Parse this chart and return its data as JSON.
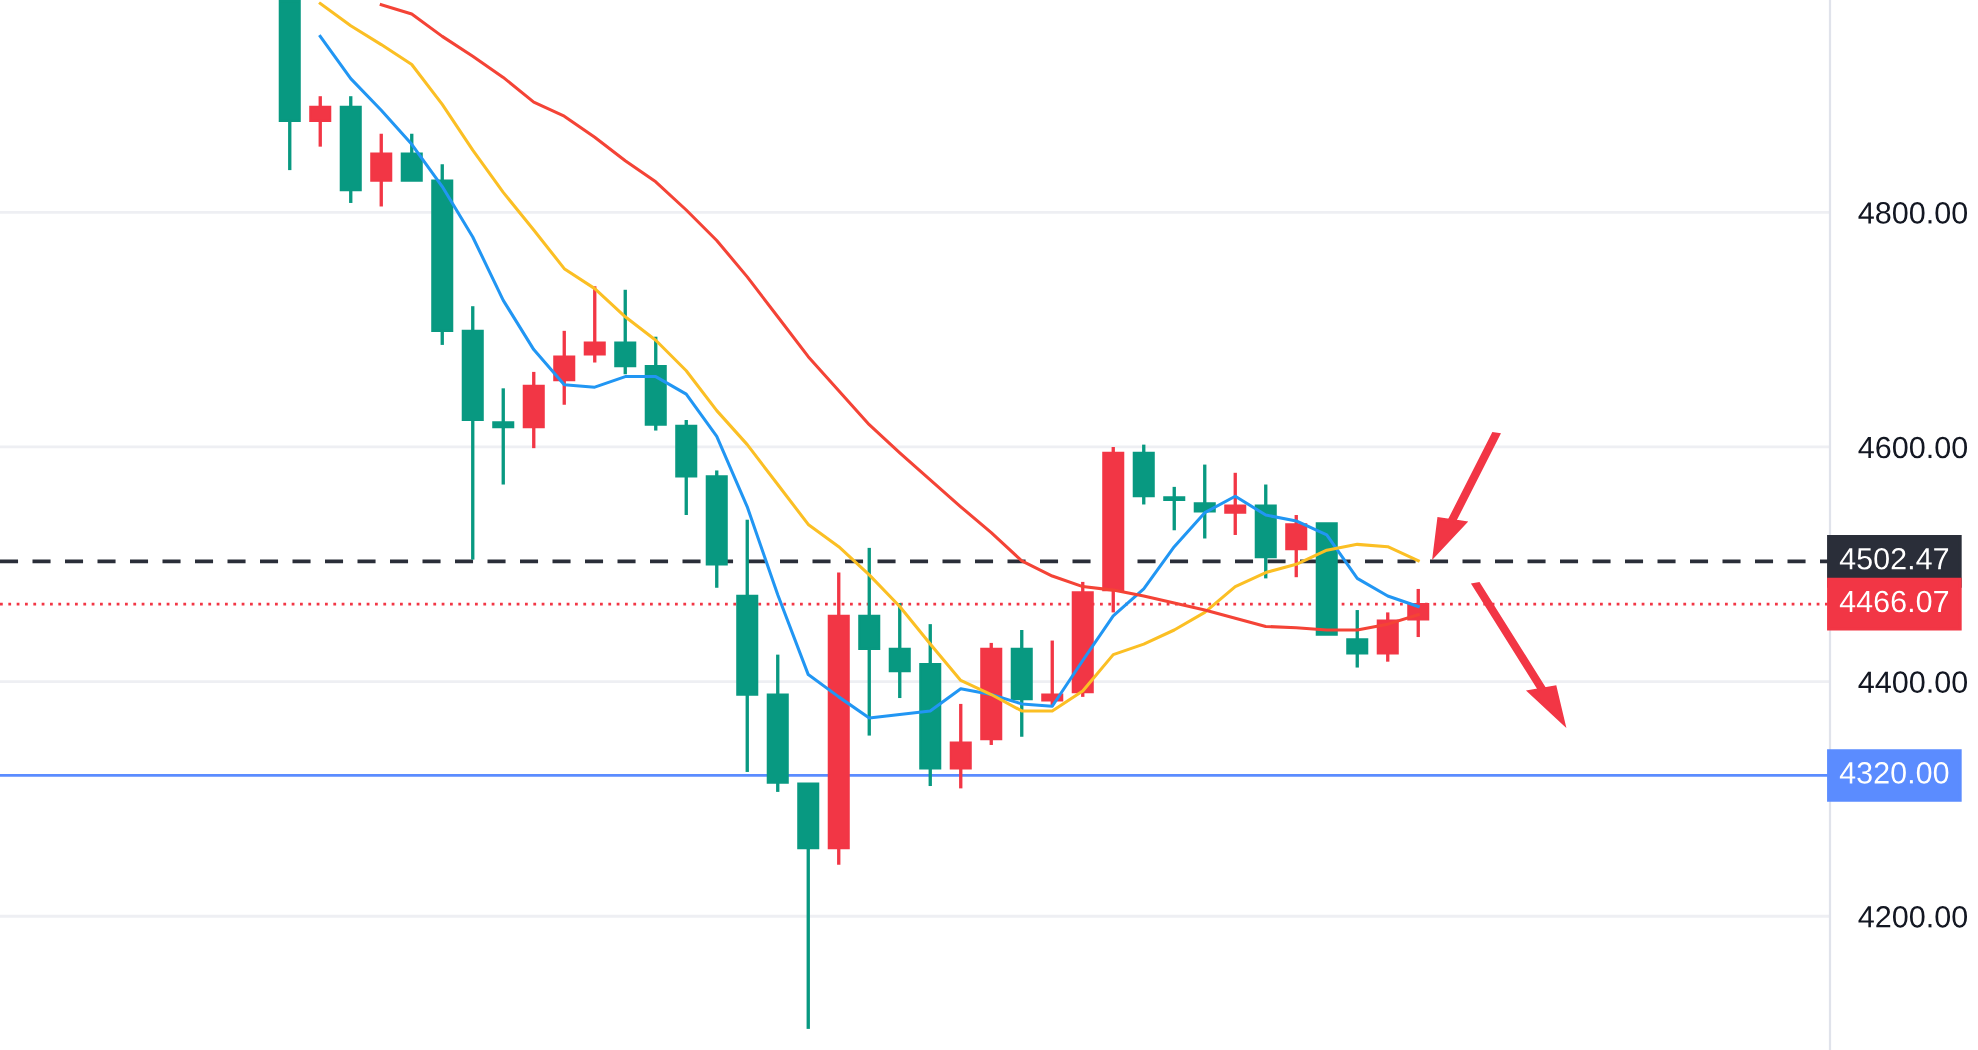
{
  "chart_data": {
    "type": "candlestick",
    "categories": [
      null,
      null,
      null,
      null,
      null,
      null,
      null,
      null,
      null,
      null,
      null,
      null,
      null,
      null,
      null,
      null,
      null,
      null,
      null,
      null,
      null,
      null,
      null,
      null,
      null,
      null,
      null,
      null,
      null,
      null,
      null,
      null,
      null,
      null,
      null,
      null,
      null,
      null,
      null,
      null,
      null,
      null,
      null,
      null,
      null,
      null,
      null,
      null,
      null,
      null,
      null,
      null,
      null,
      null,
      null,
      null,
      null,
      null,
      null,
      null
    ],
    "ohlc": [
      null,
      null,
      null,
      null,
      null,
      null,
      null,
      null,
      null,
      [
        4980,
        4980,
        4836,
        4878
      ],
      [
        4878,
        4899,
        4856,
        4890
      ],
      [
        4890,
        4899,
        4808,
        4819
      ],
      [
        4827,
        4867,
        4805,
        4850
      ],
      [
        4850,
        4867,
        4827,
        4827
      ],
      [
        4827,
        4841,
        4687,
        4699
      ],
      [
        4699,
        4720,
        4504,
        4623
      ],
      [
        4621,
        4650,
        4568,
        4617
      ],
      [
        4617,
        4664,
        4599,
        4652
      ],
      [
        4657,
        4699,
        4636,
        4677
      ],
      [
        4679,
        4737,
        4672,
        4689
      ],
      [
        4689,
        4734,
        4662,
        4669
      ],
      [
        4669,
        4694,
        4614,
        4619
      ],
      [
        4618,
        4623,
        4542,
        4575
      ],
      [
        4575,
        4580,
        4480,
        4500
      ],
      [
        4473,
        4538,
        4323,
        4389
      ],
      [
        4389,
        4423,
        4306,
        4314
      ],
      [
        4313,
        4313,
        4104,
        4258
      ],
      [
        4258,
        4493,
        4244,
        4456
      ],
      [
        4456,
        4514,
        4354,
        4428
      ],
      [
        4428,
        4467,
        4386,
        4409
      ],
      [
        4415,
        4449,
        4311,
        4326
      ],
      [
        4326,
        4381,
        4309,
        4348
      ],
      [
        4351,
        4433,
        4346,
        4428
      ],
      [
        4428,
        4444,
        4353,
        4385
      ],
      [
        4384,
        4435,
        4379,
        4389
      ],
      [
        4391,
        4485,
        4387,
        4476
      ],
      [
        4478,
        4600,
        4459,
        4595
      ],
      [
        4595,
        4602,
        4551,
        4558
      ],
      [
        4557,
        4566,
        4529,
        4555
      ],
      [
        4552,
        4585,
        4522,
        4545
      ],
      [
        4544,
        4578,
        4525,
        4550
      ],
      [
        4550,
        4568,
        4488,
        4506
      ],
      [
        4513,
        4542,
        4489,
        4534
      ],
      [
        4535,
        4535,
        4440,
        4440
      ],
      [
        4436,
        4461,
        4412,
        4424
      ],
      [
        4424,
        4459,
        4417,
        4452
      ],
      [
        4453,
        4479,
        4438,
        4466
      ],
      null,
      null,
      null,
      null,
      null,
      null,
      null,
      null,
      null,
      null,
      null,
      null,
      null
    ],
    "colors": [
      null,
      null,
      null,
      null,
      null,
      null,
      null,
      null,
      null,
      "#089981",
      "#f23645",
      "#089981",
      "#f23645",
      "#089981",
      "#089981",
      "#089981",
      "#089981",
      "#f23645",
      "#f23645",
      "#f23645",
      "#089981",
      "#089981",
      "#089981",
      "#089981",
      "#089981",
      "#089981",
      "#089981",
      "#f23645",
      "#089981",
      "#089981",
      "#089981",
      "#f23645",
      "#f23645",
      "#089981",
      "#f23645",
      "#f23645",
      "#f23645",
      "#089981",
      "#089981",
      "#089981",
      "#f23645",
      "#089981",
      "#f23645",
      "#089981",
      "#089981",
      "#f23645",
      "#f23645",
      null,
      null,
      null,
      null,
      null,
      null,
      null,
      null,
      null,
      null,
      null,
      null,
      null
    ],
    "series": [
      {
        "type": "line",
        "color": "#2196f3",
        "values": [
          null,
          null,
          null,
          null,
          null,
          null,
          null,
          null,
          null,
          null,
          4950,
          4914,
          4887,
          4858,
          4822,
          4779,
          4725,
          4683,
          4653,
          4651,
          4660,
          4660,
          4645,
          4609,
          4549,
          4474,
          4406,
          4387,
          4369,
          4372,
          4375,
          4394,
          4389,
          4381,
          4379,
          4418,
          4456,
          4479,
          4515,
          4544,
          4558,
          4542,
          4537,
          4525,
          4488,
          4473,
          4464,
          null,
          null,
          null,
          null,
          null,
          null,
          null,
          null,
          null,
          null,
          null,
          null,
          null
        ]
      },
      {
        "type": "line",
        "color": "#fbbf24",
        "values": [
          null,
          null,
          null,
          null,
          null,
          null,
          null,
          null,
          null,
          null,
          4978,
          4959,
          4943,
          4926,
          4892,
          4853,
          4817,
          4785,
          4752,
          4735,
          4711,
          4691,
          4665,
          4631,
          4602,
          4568,
          4534,
          4515,
          4491,
          4464,
          4432,
          4401,
          4389,
          4375,
          4375,
          4392,
          4423,
          4432,
          4444,
          4459,
          4481,
          4493,
          4500,
          4512,
          4517,
          4515,
          4503,
          null,
          null,
          null,
          null,
          null,
          null,
          null,
          null,
          null,
          null,
          null,
          null,
          null
        ]
      },
      {
        "type": "line",
        "color": "#f44336",
        "values": [
          null,
          null,
          null,
          null,
          null,
          null,
          null,
          null,
          null,
          null,
          null,
          null,
          4977,
          4969,
          4950,
          4933,
          4915,
          4894,
          4882,
          4864,
          4844,
          4826,
          4802,
          4776,
          4745,
          4711,
          4677,
          4648,
          4619,
          4595,
          4572,
          4549,
          4527,
          4503,
          4490,
          4481,
          4478,
          4473,
          4467,
          4461,
          4454,
          4447,
          4446,
          4444,
          4444,
          4449,
          4457,
          null,
          null,
          null,
          null,
          null,
          null,
          null,
          null,
          null,
          null,
          null,
          null,
          null
        ]
      }
    ],
    "ylim": [
      4086,
      4981
    ],
    "yticks": [
      {
        "value": 4200,
        "label": "4200.00"
      },
      {
        "value": 4400,
        "label": "4400.00"
      },
      {
        "value": 4600,
        "label": "4600.00"
      },
      {
        "value": 4800,
        "label": "4800.00"
      }
    ],
    "ref_lines": [
      {
        "axis": "y",
        "value": 4502.47,
        "label": "4502.47",
        "color": "#2a2e39",
        "line_style": "dashed"
      },
      {
        "axis": "y",
        "value": 4466.07,
        "label": "4466.07",
        "color": "#f23645",
        "line_style": "dotted"
      },
      {
        "axis": "y",
        "value": 4320,
        "label": "4320.00",
        "color": "#5b8cff",
        "line_style": "solid"
      }
    ],
    "grid": "y"
  }
}
